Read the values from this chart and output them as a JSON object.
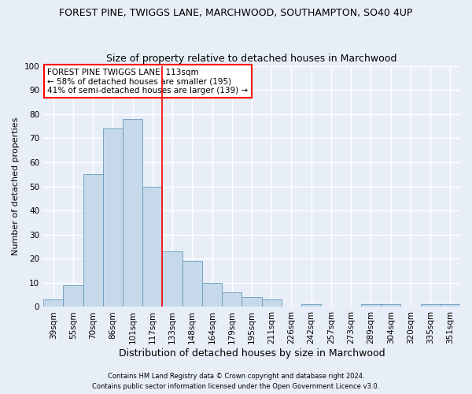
{
  "title_line1": "FOREST PINE, TWIGGS LANE, MARCHWOOD, SOUTHAMPTON, SO40 4UP",
  "title_line2": "Size of property relative to detached houses in Marchwood",
  "xlabel": "Distribution of detached houses by size in Marchwood",
  "ylabel": "Number of detached properties",
  "categories": [
    "39sqm",
    "55sqm",
    "70sqm",
    "86sqm",
    "101sqm",
    "117sqm",
    "133sqm",
    "148sqm",
    "164sqm",
    "179sqm",
    "195sqm",
    "211sqm",
    "226sqm",
    "242sqm",
    "257sqm",
    "273sqm",
    "289sqm",
    "304sqm",
    "320sqm",
    "335sqm",
    "351sqm"
  ],
  "values": [
    3,
    9,
    55,
    74,
    78,
    50,
    23,
    19,
    10,
    6,
    4,
    3,
    0,
    1,
    0,
    0,
    1,
    1,
    0,
    1,
    1
  ],
  "bar_color": "#c6d9ea",
  "bar_edge_color": "#6699bb",
  "vline_x": 5.5,
  "vline_color": "red",
  "ylim": [
    0,
    100
  ],
  "yticks": [
    0,
    10,
    20,
    30,
    40,
    50,
    60,
    70,
    80,
    90,
    100
  ],
  "annotation_title": "FOREST PINE TWIGGS LANE: 113sqm",
  "annotation_line1": "← 58% of detached houses are smaller (195)",
  "annotation_line2": "41% of semi-detached houses are larger (139) →",
  "annotation_box_color": "white",
  "annotation_box_edge": "red",
  "footer_line1": "Contains HM Land Registry data © Crown copyright and database right 2024.",
  "footer_line2": "Contains public sector information licensed under the Open Government Licence v3.0.",
  "background_color": "#e8eef8",
  "grid_color": "white",
  "title_fontsize": 9,
  "subtitle_fontsize": 9,
  "tick_fontsize": 7.5,
  "ylabel_fontsize": 8,
  "xlabel_fontsize": 9,
  "annotation_fontsize": 7.5,
  "footer_fontsize": 6
}
